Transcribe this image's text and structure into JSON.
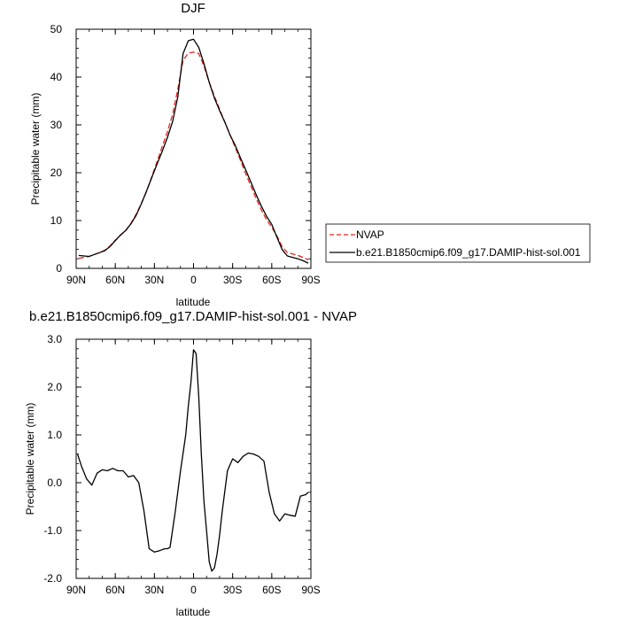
{
  "chart_data": [
    {
      "type": "line",
      "title": "DJF",
      "xlabel": "latitude",
      "ylabel": "Precipitable water (mm)",
      "xlim": [
        90,
        -90
      ],
      "ylim": [
        0,
        50
      ],
      "x_tick_labels": [
        "90N",
        "60N",
        "30N",
        "0",
        "30S",
        "60S",
        "90S"
      ],
      "y_tick_labels": [
        "0",
        "10",
        "20",
        "30",
        "40",
        "50"
      ],
      "legend": "right",
      "series": [
        {
          "name": "NVAP",
          "color": "#e8211b",
          "dash": "dashed",
          "x": [
            88,
            84,
            80,
            76,
            72,
            68,
            64,
            60,
            56,
            52,
            48,
            44,
            40,
            36,
            32,
            28,
            24,
            20,
            16,
            12,
            8,
            4,
            0,
            -4,
            -8,
            -12,
            -16,
            -20,
            -24,
            -28,
            -32,
            -36,
            -40,
            -44,
            -48,
            -52,
            -56,
            -60,
            -64,
            -68,
            -72,
            -76,
            -80,
            -84,
            -88
          ],
          "y": [
            2.1,
            2.3,
            2.5,
            2.9,
            3.3,
            3.8,
            4.7,
            5.9,
            6.9,
            7.9,
            9.4,
            11.3,
            13.6,
            16.1,
            19.2,
            22.3,
            25.5,
            28.6,
            32.2,
            37.5,
            43.5,
            45.0,
            45.2,
            44.9,
            42.3,
            38.9,
            36.0,
            33.3,
            30.6,
            27.9,
            25.3,
            22.6,
            19.8,
            17.2,
            14.6,
            12.2,
            10.2,
            8.6,
            6.8,
            4.5,
            3.3,
            3.0,
            2.7,
            2.3,
            1.8
          ]
        },
        {
          "name": "b.e21.B1850cmip6.f09_g17.DAMIP-hist-sol.001",
          "color": "#000000",
          "dash": "solid",
          "x": [
            88,
            84,
            80,
            76,
            72,
            68,
            64,
            60,
            56,
            52,
            48,
            44,
            40,
            36,
            32,
            28,
            24,
            20,
            16,
            12,
            8,
            4,
            0,
            -4,
            -8,
            -12,
            -16,
            -20,
            -24,
            -28,
            -32,
            -36,
            -40,
            -44,
            -48,
            -52,
            -56,
            -60,
            -64,
            -68,
            -72,
            -76,
            -80,
            -84,
            -88
          ],
          "y": [
            2.7,
            2.6,
            2.5,
            2.9,
            3.3,
            3.7,
            4.6,
            5.8,
            7.0,
            7.9,
            9.3,
            11.1,
            13.5,
            16.2,
            19.0,
            21.8,
            24.5,
            27.4,
            30.7,
            35.9,
            44.9,
            47.6,
            47.9,
            46.2,
            42.8,
            38.9,
            35.6,
            33.0,
            30.6,
            27.9,
            25.7,
            23.1,
            20.6,
            18.0,
            15.4,
            13.0,
            10.9,
            9.2,
            6.5,
            3.9,
            2.6,
            2.3,
            2.0,
            1.6,
            1.1
          ]
        }
      ]
    },
    {
      "type": "line",
      "title": "b.e21.B1850cmip6.f09_g17.DAMIP-hist-sol.001 - NVAP",
      "xlabel": "latitude",
      "ylabel": "Precipitable water (mm)",
      "xlim": [
        90,
        -90
      ],
      "ylim": [
        -2.0,
        3.0
      ],
      "x_tick_labels": [
        "90N",
        "60N",
        "30N",
        "0",
        "30S",
        "60S",
        "90S"
      ],
      "y_tick_labels": [
        "-2.0",
        "-1.0",
        "0.0",
        "1.0",
        "2.0",
        "3.0"
      ],
      "series": [
        {
          "color": "#000000",
          "x": [
            89,
            86,
            82,
            78,
            74,
            70,
            66,
            62,
            58,
            54,
            50,
            46,
            42,
            38,
            34,
            30,
            26,
            22,
            20,
            18,
            14,
            10,
            6,
            4,
            2,
            0,
            -2,
            -4,
            -6,
            -8,
            -10,
            -12,
            -14,
            -16,
            -18,
            -20,
            -22,
            -26,
            -30,
            -34,
            -38,
            -42,
            -46,
            -50,
            -54,
            -58,
            -62,
            -66,
            -70,
            -74,
            -78,
            -82,
            -86,
            -88
          ],
          "y": [
            0.6,
            0.35,
            0.08,
            -0.05,
            0.2,
            0.27,
            0.25,
            0.3,
            0.25,
            0.25,
            0.12,
            0.15,
            0.0,
            -0.6,
            -1.38,
            -1.45,
            -1.42,
            -1.38,
            -1.38,
            -1.35,
            -0.6,
            0.25,
            1.0,
            1.6,
            2.1,
            2.78,
            2.7,
            1.8,
            0.6,
            -0.4,
            -1.0,
            -1.65,
            -1.85,
            -1.78,
            -1.5,
            -1.1,
            -0.6,
            0.25,
            0.5,
            0.42,
            0.55,
            0.62,
            0.6,
            0.55,
            0.45,
            -0.2,
            -0.65,
            -0.8,
            -0.65,
            -0.68,
            -0.7,
            -0.28,
            -0.25,
            -0.2
          ]
        }
      ]
    }
  ]
}
